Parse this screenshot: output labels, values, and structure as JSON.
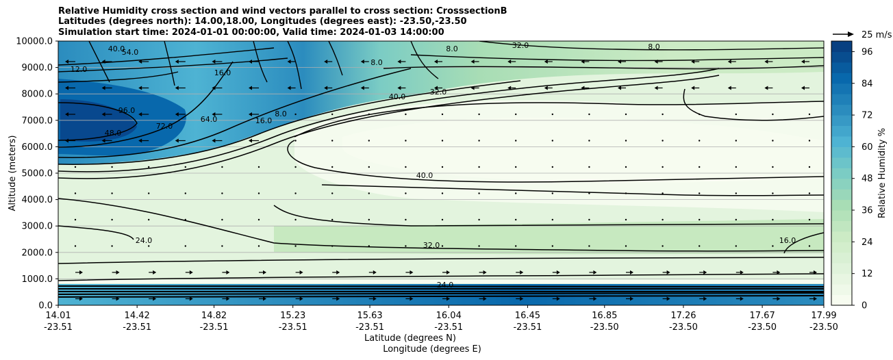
{
  "chart_data": {
    "type": "contour",
    "title_lines": [
      "Relative Humidity cross section and wind vectors parallel to cross section: CrosssectionB",
      "Latitudes (degrees north): 14.00,18.00, Longitudes (degrees east): -23.50,-23.50",
      "Simulation start time: 2024-01-01 00:00:00, Valid time: 2024-01-03 14:00:00"
    ],
    "ylabel": "Altitude (meters)",
    "xlabel_lat": "Latitude (degrees N)",
    "xlabel_lon": "Longitude (degrees E)",
    "ylim": [
      0,
      10000
    ],
    "xlim": [
      14.01,
      17.99
    ],
    "y_ticks": [
      "0.0",
      "1000.0",
      "2000.0",
      "3000.0",
      "4000.0",
      "5000.0",
      "6000.0",
      "7000.0",
      "8000.0",
      "9000.0",
      "10000.0"
    ],
    "x_ticks": [
      {
        "lat": "14.01",
        "lon": "-23.51"
      },
      {
        "lat": "14.42",
        "lon": "-23.51"
      },
      {
        "lat": "14.82",
        "lon": "-23.51"
      },
      {
        "lat": "15.23",
        "lon": "-23.51"
      },
      {
        "lat": "15.63",
        "lon": "-23.51"
      },
      {
        "lat": "16.04",
        "lon": "-23.51"
      },
      {
        "lat": "16.45",
        "lon": "-23.51"
      },
      {
        "lat": "16.85",
        "lon": "-23.50"
      },
      {
        "lat": "17.26",
        "lon": "-23.50"
      },
      {
        "lat": "17.67",
        "lon": "-23.50"
      },
      {
        "lat": "17.99",
        "lon": "-23.50"
      }
    ],
    "colorbar": {
      "label": "Relative Humidity %",
      "ticks": [
        "0",
        "12",
        "24",
        "36",
        "48",
        "60",
        "72",
        "84",
        "96"
      ],
      "range": [
        0,
        100
      ],
      "levels": 25,
      "colormap": "GnBu",
      "low_color": "#f7fcf0",
      "high_color": "#084081"
    },
    "quiver_key": "25 m/s",
    "grid": "horizontal",
    "contour_labels": [
      "96.0",
      "72.0",
      "64.0",
      "48.0",
      "40.0",
      "40.0",
      "32.0",
      "32.0",
      "24.0",
      "24.0",
      "16.0",
      "16.0",
      "16.0",
      "8.0",
      "8.0",
      "8.0",
      "8.0",
      "32.0",
      "54.0",
      "40.0",
      "12.0"
    ]
  }
}
